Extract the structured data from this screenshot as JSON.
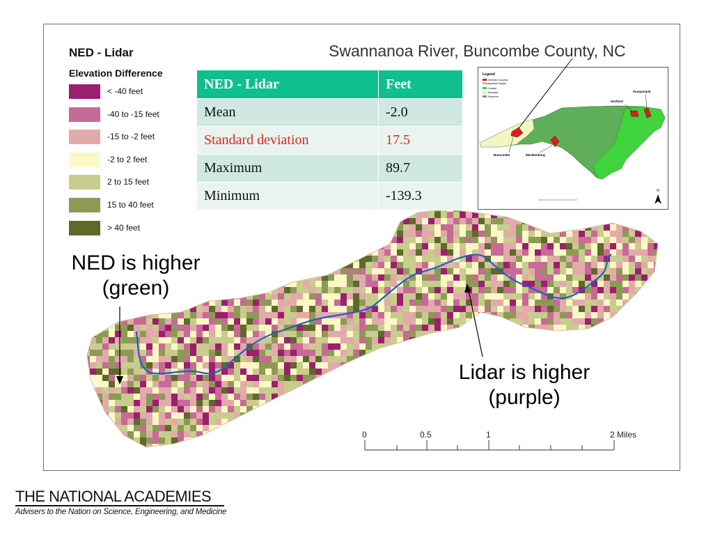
{
  "map": {
    "title": "Swannanoa River, Buncombe County, NC"
  },
  "legend": {
    "title": "NED - Lidar",
    "subtitle": "Elevation Difference",
    "items": [
      {
        "label": "< -40 feet",
        "color": "#9c1f6e"
      },
      {
        "label": "-40 to -15 feet",
        "color": "#c76a96"
      },
      {
        "label": "-15 to -2 feet",
        "color": "#e2aaab"
      },
      {
        "label": "-2 to 2 feet",
        "color": "#fbf8c6"
      },
      {
        "label": "2 to 15 feet",
        "color": "#c8cc8c"
      },
      {
        "label": "15 to 40 feet",
        "color": "#8c9a55"
      },
      {
        "label": "> 40 feet",
        "color": "#5d6a2c"
      }
    ]
  },
  "stats_table": {
    "headers": [
      "NED - Lidar",
      "Feet"
    ],
    "rows": [
      {
        "label": "Mean",
        "value": "-2.0"
      },
      {
        "label": "Standard deviation",
        "value": "17.5"
      },
      {
        "label": "Maximum",
        "value": "89.7"
      },
      {
        "label": "Minimum",
        "value": "-139.3"
      }
    ],
    "header_color": "#0fbf8f",
    "highlight_color": "#e1261c"
  },
  "inset_map": {
    "legend_title": "Legend",
    "legend_items": [
      "Selected Counties",
      "Physiographic Region",
      "Coastal",
      "Mountain",
      "Piedmont"
    ],
    "counties": [
      "Buncombe",
      "Mecklenburg",
      "Hertford",
      "Pasquotank"
    ],
    "north_label": "N",
    "colors": {
      "selected": "#e31a1c",
      "coastal": "#3fd43b",
      "mountain": "#f2f7c2",
      "piedmont": "#5fae5a"
    }
  },
  "annotations": {
    "ned_higher": [
      "NED is higher",
      "(green)"
    ],
    "lidar_higher": [
      "Lidar is higher",
      "(purple)"
    ]
  },
  "scale_bar": {
    "labels": [
      "0",
      "0.5",
      "1",
      "2 Miles"
    ]
  },
  "river_color": "#1f5fbf",
  "footer": {
    "org": "THE NATIONAL ACADEMIES",
    "tagline": "Advisers to the Nation on Science, Engineering, and Medicine"
  }
}
